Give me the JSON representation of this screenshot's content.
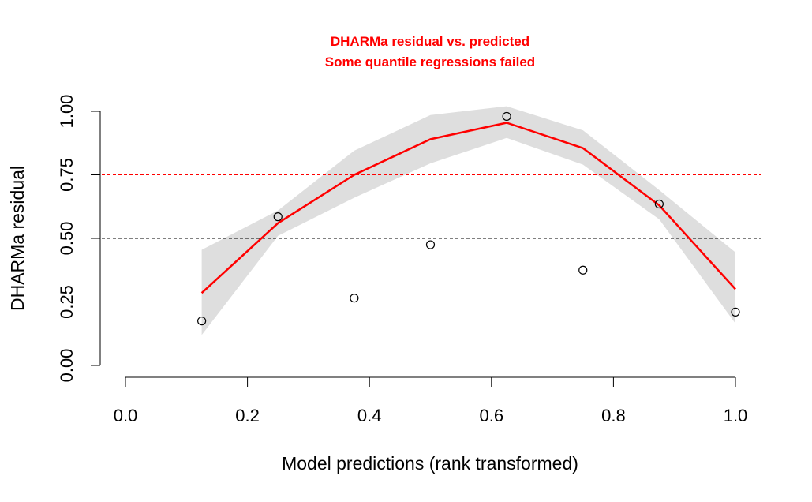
{
  "colors": {
    "title": "#ff0000",
    "fit_line": "#ff0000",
    "band": "#dedede",
    "quantile_025_075": "#000000",
    "quantile_050": "#000000",
    "quantile_075_failed": "#ff0000"
  },
  "chart_data": {
    "type": "scatter",
    "title": "DHARMa residual vs. predicted",
    "subtitle": "Some quantile regressions failed",
    "xlabel": "Model predictions (rank transformed)",
    "ylabel": "DHARMa residual",
    "xlim": [
      0.0,
      1.0
    ],
    "ylim": [
      0.0,
      1.0
    ],
    "x_ticks": [
      "0.0",
      "0.2",
      "0.4",
      "0.6",
      "0.8",
      "1.0"
    ],
    "y_ticks": [
      "0.00",
      "0.25",
      "0.50",
      "0.75",
      "1.00"
    ],
    "grid": false,
    "series": [
      {
        "kind": "points",
        "x": [
          0.125,
          0.25,
          0.375,
          0.5,
          0.625,
          0.75,
          0.875,
          1.0
        ],
        "y": [
          0.175,
          0.585,
          0.265,
          0.475,
          0.98,
          0.375,
          0.635,
          0.21
        ]
      },
      {
        "kind": "line",
        "x": [
          0.125,
          0.25,
          0.375,
          0.5,
          0.625,
          0.75,
          0.875,
          1.0
        ],
        "y": [
          0.285,
          0.56,
          0.75,
          0.89,
          0.955,
          0.855,
          0.63,
          0.3
        ]
      },
      {
        "kind": "band",
        "x": [
          0.125,
          0.25,
          0.375,
          0.5,
          0.625,
          0.75,
          0.875,
          1.0
        ],
        "upper": [
          0.455,
          0.61,
          0.845,
          0.985,
          1.02,
          0.925,
          0.69,
          0.445
        ],
        "lower": [
          0.12,
          0.51,
          0.66,
          0.795,
          0.895,
          0.79,
          0.575,
          0.165
        ]
      }
    ],
    "reference_lines": [
      {
        "y": 0.25,
        "style": "dashed",
        "failed": false
      },
      {
        "y": 0.5,
        "style": "dashed",
        "failed": false
      },
      {
        "y": 0.75,
        "style": "dashed",
        "failed": true
      }
    ]
  }
}
